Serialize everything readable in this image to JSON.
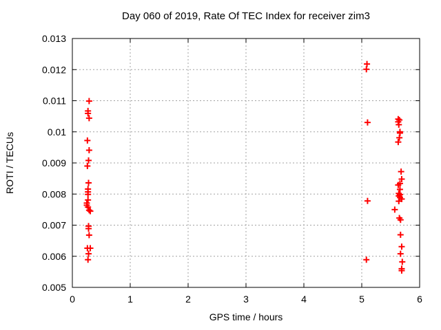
{
  "chart_data": {
    "type": "scatter",
    "title": "Day 060 of 2019, Rate Of TEC Index for receiver zim3",
    "xlabel": "GPS time / hours",
    "ylabel": "ROTI / TECUs",
    "xlim": [
      0,
      6
    ],
    "ylim": [
      0.005,
      0.013
    ],
    "x_tick_values": [
      0,
      1,
      2,
      3,
      4,
      5,
      6
    ],
    "x_tick_labels": [
      "0",
      "1",
      "2",
      "3",
      "4",
      "5",
      "6"
    ],
    "y_tick_values": [
      0.005,
      0.006,
      0.007,
      0.008,
      0.009,
      0.01,
      0.011,
      0.012,
      0.013
    ],
    "y_tick_labels": [
      "0.005",
      "0.006",
      "0.007",
      "0.008",
      "0.009",
      "0.01",
      "0.011",
      "0.012",
      "0.013"
    ],
    "grid": true,
    "legend_position": "none",
    "marker": "plus",
    "marker_color": "#ff0000",
    "grid_color": "#a0a0a0",
    "border_color": "#000000",
    "background_color": "#ffffff",
    "series": [
      {
        "name": "ROTI",
        "points": [
          [
            0.29,
            0.01099
          ],
          [
            0.27,
            0.01067
          ],
          [
            0.27,
            0.01059
          ],
          [
            0.29,
            0.01044
          ],
          [
            0.26,
            0.00972
          ],
          [
            0.29,
            0.00941
          ],
          [
            0.28,
            0.00908
          ],
          [
            0.26,
            0.0089
          ],
          [
            0.28,
            0.00836
          ],
          [
            0.27,
            0.00816
          ],
          [
            0.27,
            0.00807
          ],
          [
            0.27,
            0.00799
          ],
          [
            0.27,
            0.00781
          ],
          [
            0.25,
            0.00771
          ],
          [
            0.25,
            0.00764
          ],
          [
            0.27,
            0.00758
          ],
          [
            0.29,
            0.00748
          ],
          [
            0.31,
            0.00745
          ],
          [
            0.28,
            0.00697
          ],
          [
            0.28,
            0.00689
          ],
          [
            0.29,
            0.00668
          ],
          [
            0.26,
            0.00626
          ],
          [
            0.31,
            0.00626
          ],
          [
            0.28,
            0.00608
          ],
          [
            0.27,
            0.00589
          ],
          [
            5.09,
            0.01218
          ],
          [
            5.08,
            0.01201
          ],
          [
            5.1,
            0.0103
          ],
          [
            5.1,
            0.00778
          ],
          [
            5.08,
            0.00589
          ],
          [
            5.63,
            0.01041
          ],
          [
            5.65,
            0.01038
          ],
          [
            5.63,
            0.01032
          ],
          [
            5.64,
            0.01023
          ],
          [
            5.66,
            0.01
          ],
          [
            5.66,
            0.00996
          ],
          [
            5.65,
            0.00981
          ],
          [
            5.63,
            0.00967
          ],
          [
            5.68,
            0.00872
          ],
          [
            5.69,
            0.00848
          ],
          [
            5.66,
            0.00834
          ],
          [
            5.63,
            0.00829
          ],
          [
            5.66,
            0.00815
          ],
          [
            5.64,
            0.00802
          ],
          [
            5.66,
            0.00798
          ],
          [
            5.64,
            0.00794
          ],
          [
            5.66,
            0.00789
          ],
          [
            5.69,
            0.00784
          ],
          [
            5.64,
            0.00777
          ],
          [
            5.57,
            0.0075
          ],
          [
            5.65,
            0.00723
          ],
          [
            5.67,
            0.00717
          ],
          [
            5.67,
            0.00669
          ],
          [
            5.69,
            0.00631
          ],
          [
            5.67,
            0.00608
          ],
          [
            5.7,
            0.00582
          ],
          [
            5.69,
            0.0056
          ],
          [
            5.69,
            0.00554
          ]
        ]
      }
    ]
  }
}
